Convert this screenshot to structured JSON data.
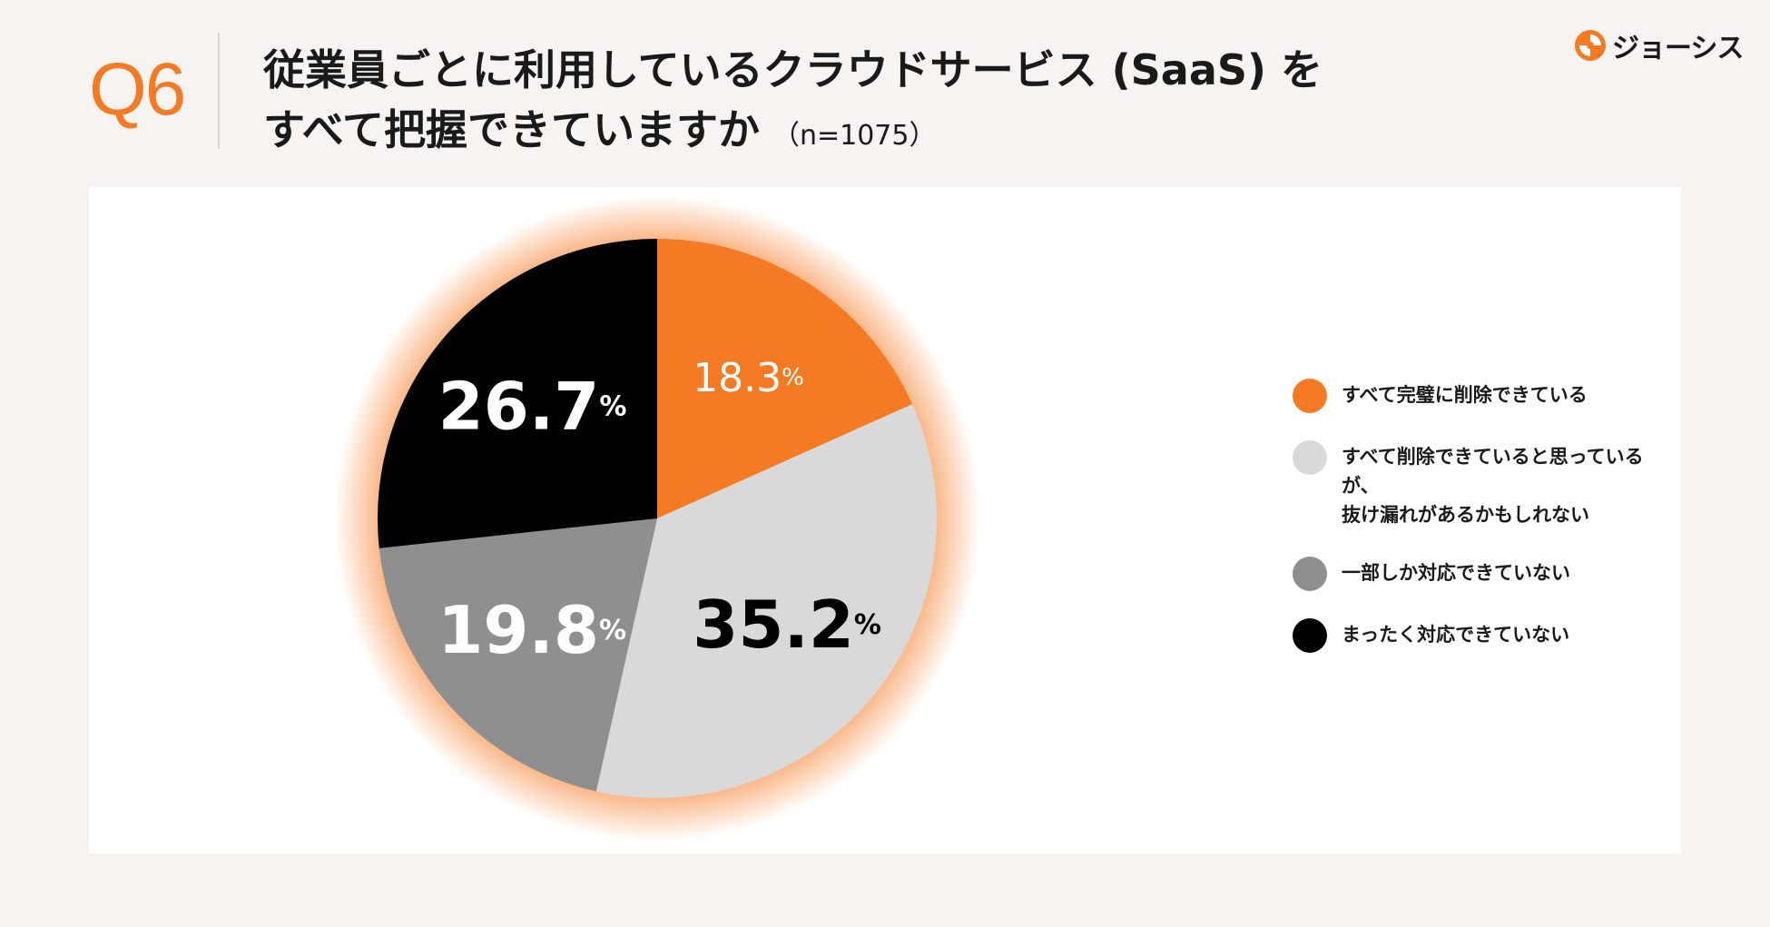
{
  "header": {
    "question": "Q6",
    "title_line1": "従業員ごとに利用しているクラウドサービス (SaaS) を",
    "title_line2": "すべて把握できていますか",
    "sample_size": "（n=1075）",
    "logo_text": "ジョーシス"
  },
  "colors": {
    "accent": "#f57a24",
    "light_gray": "#d9d9d9",
    "mid_gray": "#8f8f8f",
    "black": "#000000"
  },
  "chart_data": {
    "type": "pie",
    "title": "従業員ごとに利用しているクラウドサービス (SaaS) をすべて把握できていますか",
    "unit": "%",
    "slices": [
      {
        "label": "すべて完璧に削除できている",
        "value": 18.3,
        "display": "18.3",
        "color": "#f57a24",
        "text_color": "#ffffff",
        "bold": false
      },
      {
        "label": "すべて削除できていると思っているが、\n抜け漏れがあるかもしれない",
        "value": 35.2,
        "display": "35.2",
        "color": "#d9d9d9",
        "text_color": "#000000",
        "bold": true
      },
      {
        "label": "一部しか対応できていない",
        "value": 19.8,
        "display": "19.8",
        "color": "#8f8f8f",
        "text_color": "#ffffff",
        "bold": true
      },
      {
        "label": "まったく対応できていない",
        "value": 26.7,
        "display": "26.7",
        "color": "#000000",
        "text_color": "#ffffff",
        "bold": true
      }
    ],
    "legend_position": "right"
  }
}
